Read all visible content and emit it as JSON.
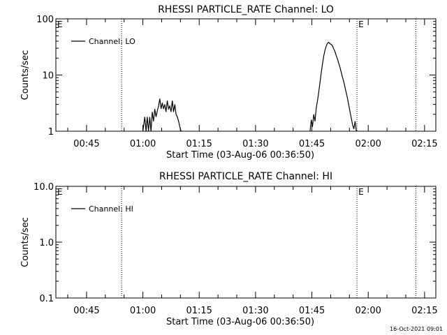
{
  "timestamp": "16-Oct-2021 09:01",
  "chart_data": [
    {
      "type": "line",
      "title": "RHESSI PARTICLE_RATE Channel: LO",
      "xlabel": "Start Time (03-Aug-06 00:36:50)",
      "ylabel": "Counts/sec",
      "x_unit": "minutes",
      "xlim": [
        "00:36:50",
        "02:18:00"
      ],
      "x_ticks": [
        "00:45",
        "01:00",
        "01:15",
        "01:30",
        "01:45",
        "02:00",
        "02:15"
      ],
      "yscale": "log",
      "ylim": [
        1,
        100
      ],
      "y_ticks": [
        "1",
        "10",
        "100"
      ],
      "legend": {
        "position": "top-left",
        "entries": [
          "Channel: LO"
        ]
      },
      "grid": false,
      "event_lines": [
        {
          "time": "00:54:20",
          "label": ""
        },
        {
          "time": "01:57:00",
          "label": "E"
        },
        {
          "time": "02:12:40",
          "label": ""
        }
      ],
      "edge_marker": "E",
      "series": [
        {
          "name": "Channel: LO",
          "x": [
            "01:00:00",
            "01:00:30",
            "01:00:50",
            "01:01:10",
            "01:01:30",
            "01:01:50",
            "01:02:10",
            "01:02:30",
            "01:02:50",
            "01:03:10",
            "01:03:30",
            "01:03:50",
            "01:04:10",
            "01:04:30",
            "01:04:50",
            "01:05:10",
            "01:05:30",
            "01:05:50",
            "01:06:10",
            "01:06:30",
            "01:06:50",
            "01:07:10",
            "01:07:30",
            "01:07:50",
            "01:08:10",
            "01:08:30",
            "01:08:50",
            "01:09:10",
            "01:09:30",
            "01:09:50",
            "01:10:10",
            "01:10:30"
          ],
          "y": [
            1,
            1.8,
            1,
            1.8,
            1,
            1.8,
            1,
            2.2,
            1.5,
            2.5,
            1.8,
            2.3,
            2.8,
            3.8,
            2.5,
            3.2,
            2.5,
            3,
            2.2,
            3.5,
            2.5,
            2.8,
            2.2,
            3.5,
            2.2,
            3,
            2,
            1.8,
            1.5,
            1.2,
            1,
            1
          ]
        },
        {
          "name": "Channel: LO",
          "x": [
            "01:44:30",
            "01:44:50",
            "01:45:10",
            "01:45:30",
            "01:45:50",
            "01:46:10",
            "01:46:30",
            "01:46:50",
            "01:47:10",
            "01:47:30",
            "01:47:50",
            "01:48:10",
            "01:48:30",
            "01:48:50",
            "01:49:10",
            "01:49:30",
            "01:49:50",
            "01:50:10",
            "01:50:30",
            "01:50:50",
            "01:51:10",
            "01:51:30",
            "01:51:50",
            "01:52:10",
            "01:52:30",
            "01:52:50",
            "01:53:10",
            "01:53:30",
            "01:53:50",
            "01:54:10",
            "01:54:30",
            "01:54:50",
            "01:55:10",
            "01:55:30",
            "01:55:50",
            "01:56:10",
            "01:56:30",
            "01:56:50"
          ],
          "y": [
            1,
            1.6,
            1.2,
            2,
            1.5,
            2.6,
            3.5,
            5,
            7.5,
            11,
            16,
            22,
            28,
            33,
            37,
            38,
            36,
            35,
            33,
            29,
            26,
            22,
            19,
            16,
            13.5,
            11,
            9,
            7.5,
            6,
            4.8,
            3.8,
            2.9,
            2.2,
            1.7,
            1.3,
            1.1,
            1.5,
            1
          ]
        }
      ]
    },
    {
      "type": "line",
      "title": "RHESSI PARTICLE_RATE Channel: HI",
      "xlabel": "Start Time (03-Aug-06 00:36:50)",
      "ylabel": "Counts/sec",
      "x_unit": "minutes",
      "xlim": [
        "00:36:50",
        "02:18:00"
      ],
      "x_ticks": [
        "00:45",
        "01:00",
        "01:15",
        "01:30",
        "01:45",
        "02:00",
        "02:15"
      ],
      "yscale": "log",
      "ylim": [
        0.1,
        10
      ],
      "y_ticks": [
        "0.1",
        "1.0",
        "10.0"
      ],
      "legend": {
        "position": "top-left",
        "entries": [
          "Channel: HI"
        ]
      },
      "grid": false,
      "event_lines": [
        {
          "time": "00:54:20",
          "label": ""
        },
        {
          "time": "01:57:00",
          "label": "E"
        },
        {
          "time": "02:12:40",
          "label": ""
        }
      ],
      "edge_marker": "E",
      "series": [
        {
          "name": "Channel: HI",
          "x": [],
          "y": []
        }
      ]
    }
  ]
}
